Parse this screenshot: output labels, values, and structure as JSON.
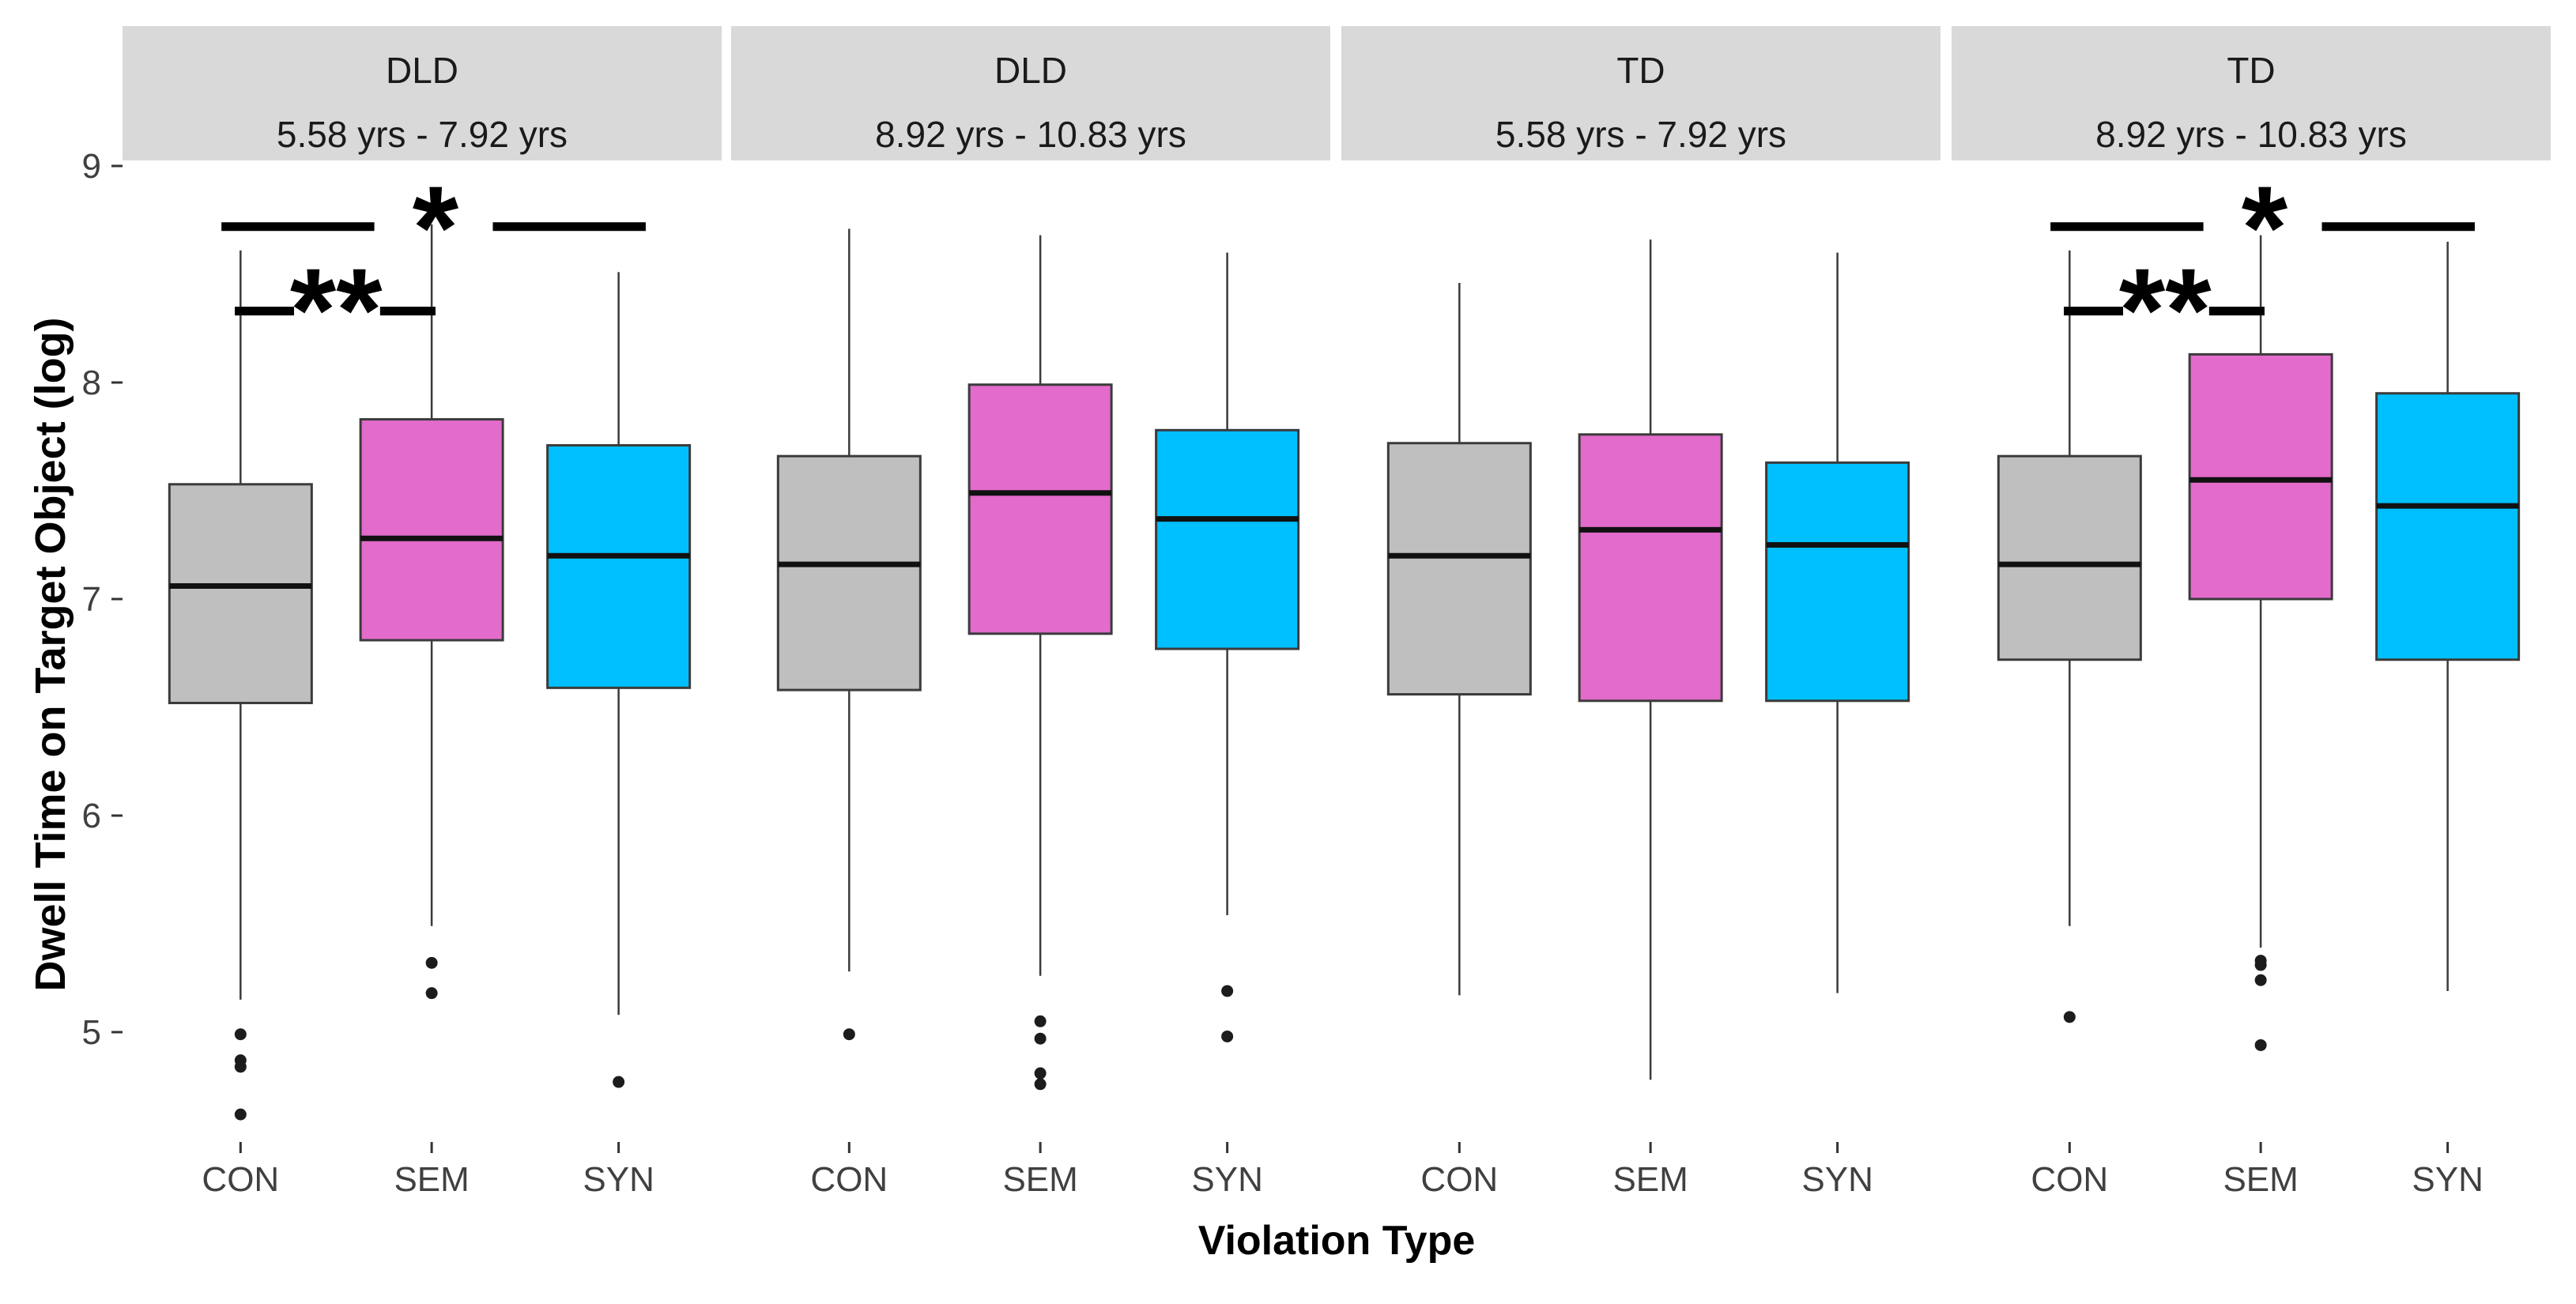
{
  "chart_data": {
    "type": "boxplot",
    "title": "",
    "ylabel": "Dwell Time on Target Object (log)",
    "xlabel": "Violation Type",
    "y_ticks": [
      9,
      8,
      7,
      6,
      5
    ],
    "ylim": [
      4.4,
      9.1
    ],
    "grid": "off",
    "legend": "none",
    "categories": [
      "CON",
      "SEM",
      "SYN"
    ],
    "colors": {
      "CON": "#bfbfbf",
      "SEM": "#e26bcb",
      "SYN": "#00bfff",
      "strip_background": "#d9d9d9",
      "panel_background": "#ffffff",
      "box_border": "#3b3b3b",
      "median_line": "#111111",
      "axis_text": "#404040",
      "significance": "#000000"
    },
    "facets": [
      {
        "group": "DLD",
        "age_range": "5.58 yrs - 7.92 yrs",
        "boxes": [
          {
            "category": "CON",
            "whisker_low": 5.15,
            "q1": 6.52,
            "median": 7.06,
            "q3": 7.53,
            "whisker_high": 8.61,
            "outliers": [
              4.99,
              4.87,
              4.84,
              4.62
            ]
          },
          {
            "category": "SEM",
            "whisker_low": 5.49,
            "q1": 6.81,
            "median": 7.28,
            "q3": 7.83,
            "whisker_high": 8.73,
            "outliers": [
              5.32,
              5.18
            ]
          },
          {
            "category": "SYN",
            "whisker_low": 5.08,
            "q1": 6.59,
            "median": 7.2,
            "q3": 7.71,
            "whisker_high": 8.51,
            "outliers": [
              4.77
            ]
          }
        ]
      },
      {
        "group": "DLD",
        "age_range": "8.92 yrs - 10.83 yrs",
        "boxes": [
          {
            "category": "CON",
            "whisker_low": 5.28,
            "q1": 6.58,
            "median": 7.16,
            "q3": 7.66,
            "whisker_high": 8.71,
            "outliers": [
              4.99
            ]
          },
          {
            "category": "SEM",
            "whisker_low": 5.26,
            "q1": 6.84,
            "median": 7.49,
            "q3": 7.99,
            "whisker_high": 8.68,
            "outliers": [
              5.05,
              4.97,
              4.81,
              4.76
            ]
          },
          {
            "category": "SYN",
            "whisker_low": 5.54,
            "q1": 6.77,
            "median": 7.37,
            "q3": 7.78,
            "whisker_high": 8.6,
            "outliers": [
              5.19,
              4.98
            ]
          }
        ]
      },
      {
        "group": "TD",
        "age_range": "5.58 yrs - 7.92 yrs",
        "boxes": [
          {
            "category": "CON",
            "whisker_low": 5.17,
            "q1": 6.56,
            "median": 7.2,
            "q3": 7.72,
            "whisker_high": 8.46,
            "outliers": []
          },
          {
            "category": "SEM",
            "whisker_low": 4.78,
            "q1": 6.53,
            "median": 7.32,
            "q3": 7.76,
            "whisker_high": 8.66,
            "outliers": []
          },
          {
            "category": "SYN",
            "whisker_low": 5.18,
            "q1": 6.53,
            "median": 7.25,
            "q3": 7.63,
            "whisker_high": 8.6,
            "outliers": []
          }
        ]
      },
      {
        "group": "TD",
        "age_range": "8.92 yrs - 10.83 yrs",
        "boxes": [
          {
            "category": "CON",
            "whisker_low": 5.49,
            "q1": 6.72,
            "median": 7.16,
            "q3": 7.66,
            "whisker_high": 8.61,
            "outliers": [
              5.07
            ]
          },
          {
            "category": "SEM",
            "whisker_low": 5.39,
            "q1": 7.0,
            "median": 7.55,
            "q3": 8.13,
            "whisker_high": 8.68,
            "outliers": [
              5.33,
              5.31,
              5.24,
              4.94
            ]
          },
          {
            "category": "SYN",
            "whisker_low": 5.19,
            "q1": 6.72,
            "median": 7.43,
            "q3": 7.95,
            "whisker_high": 8.65,
            "outliers": []
          }
        ]
      }
    ],
    "significance": [
      {
        "facet_index": 0,
        "comparisons": [
          {
            "label": "*",
            "bar_y": 8.72,
            "label_x_group": 1.02,
            "label_y": 8.8,
            "segments": [
              [
                -0.1,
                0.7
              ],
              [
                1.32,
                2.12
              ]
            ]
          },
          {
            "label": "**",
            "bar_y": 8.33,
            "label_x_group": 0.5,
            "label_y": 8.42,
            "segments": [
              [
                -0.03,
                0.28
              ],
              [
                0.73,
                1.02
              ]
            ]
          }
        ]
      },
      {
        "facet_index": 3,
        "comparisons": [
          {
            "label": "*",
            "bar_y": 8.72,
            "label_x_group": 1.02,
            "label_y": 8.8,
            "segments": [
              [
                -0.1,
                0.7
              ],
              [
                1.32,
                2.12
              ]
            ]
          },
          {
            "label": "**",
            "bar_y": 8.33,
            "label_x_group": 0.5,
            "label_y": 8.42,
            "segments": [
              [
                -0.03,
                0.28
              ],
              [
                0.73,
                1.02
              ]
            ]
          }
        ]
      }
    ]
  }
}
